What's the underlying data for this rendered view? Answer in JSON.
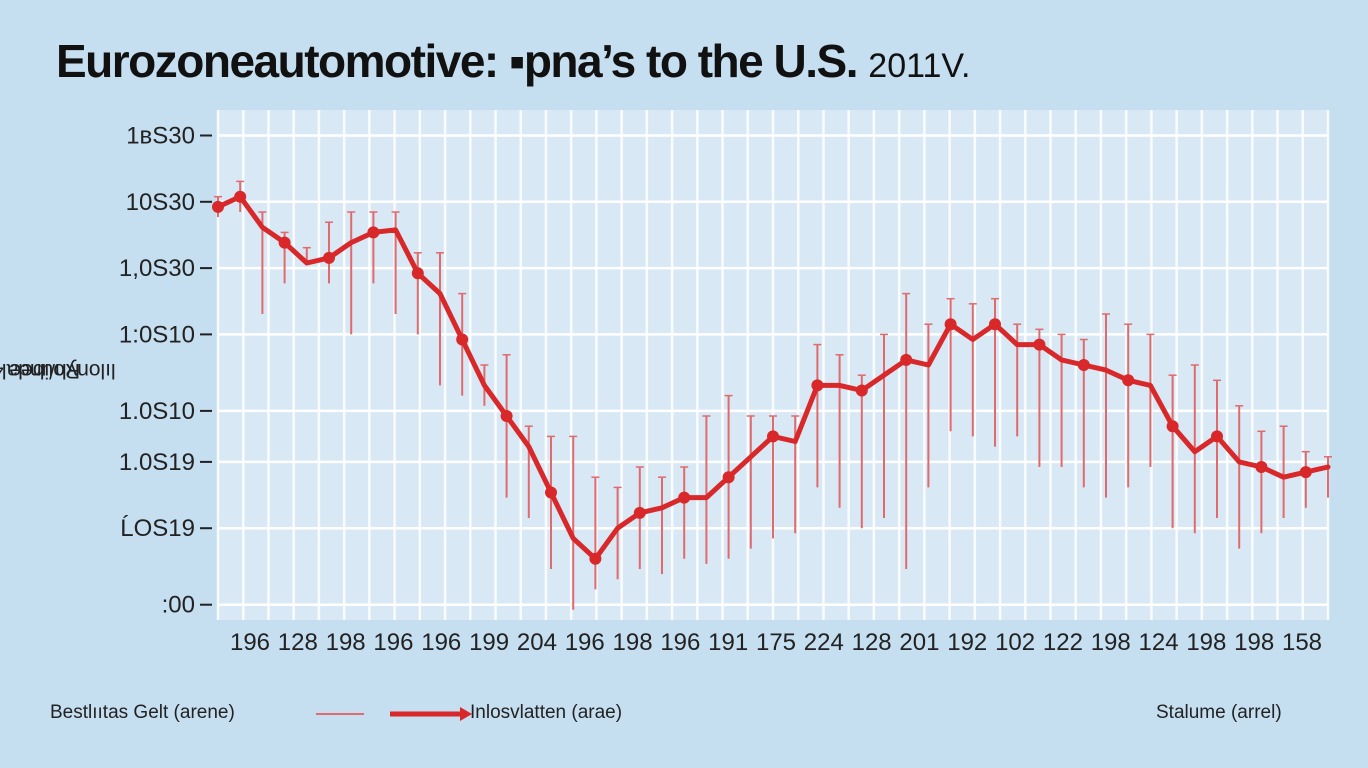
{
  "title": {
    "main": "Eurozoneautomotive: ▪︎pna’s to the U.S.",
    "suffix": "2011V."
  },
  "y_axis_label": {
    "line1": "lılonyh/ibee 4Ы)",
    "line2": "Roundal"
  },
  "legend": {
    "left_label": "Bestlııtas Gelt (arene)",
    "middle_label": "Inlosvlatten (arae)",
    "right_label": "Stalume (arrel)"
  },
  "colors": {
    "background": "#c5def0",
    "plot_background": "#d8e8f5",
    "grid": "#ffffff",
    "line": "#d8282a",
    "whisker": "#e06a6c"
  },
  "chart_data": {
    "type": "line",
    "title": "Eurozoneautomotive: ▪︎pna’s to the U.S. 2011V.",
    "ylabel": "lılonyh/ibee 4Ы) Roundal",
    "y_tick_labels": [
      "1ʙS30",
      "10S30",
      "1,0S30",
      "1:0S10",
      "1.0S10",
      "1.0S19",
      "ĹOS19",
      ":00"
    ],
    "x_tick_labels": [
      "196",
      "128",
      "198",
      "196",
      "196",
      "199",
      "204",
      "196",
      "198",
      "196",
      "191",
      "175",
      "224",
      "128",
      "201",
      "192",
      "102",
      "122",
      "198",
      "124",
      "198",
      "198",
      "158"
    ],
    "ylim": [
      0,
      100
    ],
    "grid": true,
    "legend_position": "bottom",
    "series": [
      {
        "name": "Inlosvlatten (arae)",
        "x": [
          0,
          1,
          2,
          3,
          4,
          5,
          6,
          7,
          8,
          9,
          10,
          11,
          12,
          13,
          14,
          15,
          16,
          17,
          18,
          19,
          20,
          21,
          22,
          23,
          24,
          25,
          26,
          27,
          28,
          29,
          30,
          31,
          32,
          33,
          34,
          35,
          36,
          37,
          38,
          39,
          40,
          41,
          42,
          43,
          44,
          45,
          46,
          47,
          48,
          49,
          50
        ],
        "values": [
          81,
          83,
          77,
          74,
          70,
          71,
          74,
          76,
          76.5,
          68,
          64,
          55,
          46,
          40,
          34,
          25,
          16,
          12,
          18,
          21,
          22,
          24,
          24,
          28,
          32,
          36,
          35,
          46,
          46,
          45,
          48,
          51,
          50,
          58,
          55,
          58,
          54,
          54,
          51,
          50,
          49,
          47,
          46,
          38,
          33,
          36,
          31,
          30,
          28,
          29,
          30
        ]
      }
    ],
    "error_bars": {
      "series": "Bestlııtas Gelt (arene)",
      "low": [
        79,
        80,
        60,
        66,
        70,
        66,
        56,
        66,
        60,
        56,
        46,
        44,
        42,
        24,
        20,
        10,
        2,
        6,
        8,
        10,
        9,
        12,
        11,
        12,
        14,
        16,
        17,
        26,
        22,
        18,
        20,
        10,
        26,
        37,
        36,
        34,
        36,
        30,
        30,
        26,
        24,
        26,
        30,
        18,
        17,
        20,
        14,
        17,
        20,
        22,
        24
      ],
      "high": [
        83,
        86,
        80,
        76,
        73,
        78,
        80,
        80,
        80,
        72,
        72,
        64,
        50,
        52,
        38,
        36,
        36,
        28,
        26,
        30,
        28,
        30,
        40,
        44,
        40,
        40,
        40,
        54,
        52,
        48,
        56,
        64,
        58,
        63,
        62,
        63,
        58,
        57,
        56,
        55,
        60,
        58,
        56,
        48,
        50,
        47,
        42,
        37,
        38,
        33,
        32
      ]
    }
  }
}
